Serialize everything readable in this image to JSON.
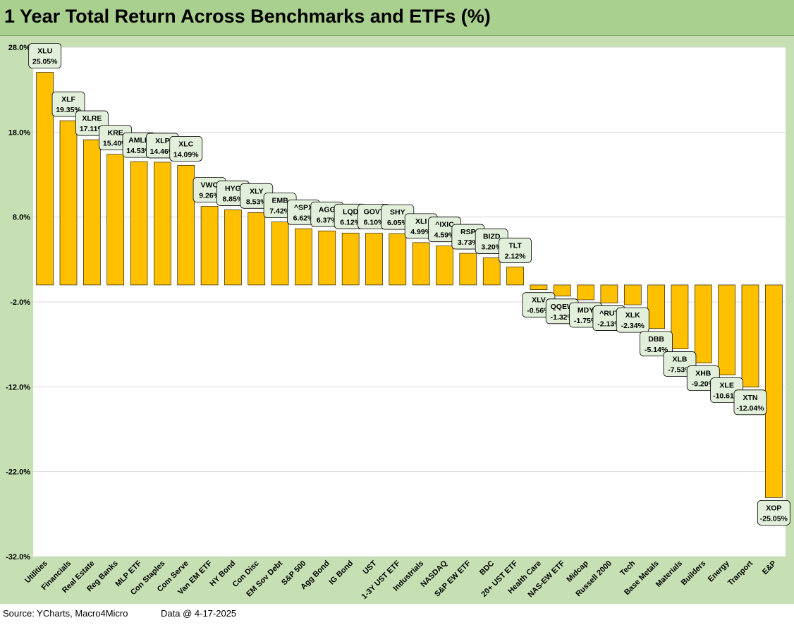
{
  "title": "1 Year Total Return Across Benchmarks and ETFs (%)",
  "footer": {
    "source": "Source: YCharts, Macro4Micro",
    "data_date": "Data @ 4-17-2025"
  },
  "colors": {
    "bar": "#ffc000",
    "bar_border": "#000000",
    "label_fill": "#e2efda",
    "plot_bg": "#ffffff",
    "chart_bg": "#c6e0b4",
    "title_bg": "#a9d08e",
    "grid": "#d9d9d9"
  },
  "chart_data": {
    "type": "bar",
    "title": "1 Year Total Return Across Benchmarks and ETFs (%)",
    "xlabel": "",
    "ylabel": "",
    "ylim": [
      -32,
      28
    ],
    "yticks": [
      "28.0%",
      "18.0%",
      "8.0%",
      "-2.0%",
      "-12.0%",
      "-22.0%",
      "-32.0%"
    ],
    "ytick_values": [
      28,
      18,
      8,
      -2,
      -12,
      -22,
      -32
    ],
    "grid": true,
    "legend": "none",
    "categories": [
      "Utilities",
      "Financials",
      "Real Estate",
      "Reg Banks",
      "MLP ETF",
      "Con Staples",
      "Com Serve",
      "Van EM ETF",
      "HY Bond",
      "Con Disc",
      "EM Sov Debt",
      "S&P 500",
      "Agg Bond",
      "IG Bond",
      "UST",
      "1-3Y UST ETF",
      "Industrials",
      "NASDAQ",
      "S&P EW ETF",
      "BDC",
      "20+ UST ETF",
      "Health Care",
      "NAS-EW ETF",
      "Midcap",
      "Russell 2000",
      "Tech",
      "Base Metals",
      "Materials",
      "Builders",
      "Energy",
      "Tranport",
      "E&P"
    ],
    "tickers": [
      "XLU",
      "XLF",
      "XLRE",
      "KRE",
      "AMLP",
      "XLP",
      "XLC",
      "VWO",
      "HYG",
      "XLY",
      "EMB",
      "^SPX",
      "AGG",
      "LQD",
      "GOVT",
      "SHY",
      "XLI",
      "^IXIC",
      "RSP",
      "BIZD",
      "TLT",
      "XLV",
      "QQEW",
      "MDY",
      "^RUT",
      "XLK",
      "DBB",
      "XLB",
      "XHB",
      "XLE",
      "XTN",
      "XOP"
    ],
    "values": [
      25.05,
      19.35,
      17.11,
      15.4,
      14.53,
      14.46,
      14.09,
      9.26,
      8.85,
      8.53,
      7.42,
      6.62,
      6.37,
      6.12,
      6.1,
      6.05,
      4.99,
      4.59,
      3.73,
      3.2,
      2.12,
      -0.56,
      -1.32,
      -1.75,
      -2.13,
      -2.34,
      -5.14,
      -7.53,
      -9.2,
      -10.61,
      -12.04,
      -25.05
    ],
    "value_labels": [
      "25.05%",
      "19.35%",
      "17.11%",
      "15.40%",
      "14.53%",
      "14.46%",
      "14.09%",
      "9.26%",
      "8.85%",
      "8.53%",
      "7.42%",
      "6.62%",
      "6.37%",
      "6.12%",
      "6.10%",
      "6.05%",
      "4.99%",
      "4.59%",
      "3.73%",
      "3.20%",
      "2.12%",
      "-0.56%",
      "-1.32%",
      "-1.75%",
      "-2.13%",
      "-2.34%",
      "-5.14%",
      "-7.53%",
      "-9.20%",
      "-10.61%",
      "-12.04%",
      "-25.05%"
    ]
  }
}
